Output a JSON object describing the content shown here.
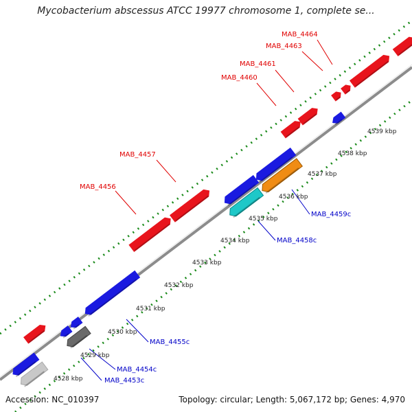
{
  "title": "Mycobacterium abscessus ATCC 19977 chromosome 1, complete se...",
  "footer": {
    "accession": "Accession: NC_010397",
    "summary": "Topology: circular; Length: 5,067,172 bp; Genes: 4,970"
  },
  "colors": {
    "forward": "#e8141c",
    "reverse": "#1a1ae0",
    "label_forward": "#e00000",
    "label_reverse": "#0000c8",
    "axis": "#8c8c8c",
    "ticks": "#1a8a1a",
    "cyan": "#1ec8c8",
    "orange": "#f08c14",
    "dark_gray": "#6a6a6a",
    "light_gray": "#c8c8c8"
  },
  "ruler": {
    "unit": "kbp",
    "ticks": [
      "4528 kbp",
      "4529 kbp",
      "4530 kbp",
      "4531 kbp",
      "4532 kbp",
      "4533 kbp",
      "4534 kbp",
      "4535 kbp",
      "4536 kbp",
      "4537 kbp",
      "4538 kbp",
      "4539 kbp"
    ]
  },
  "forward_labels": [
    "MAB_4456",
    "MAB_4457",
    "MAB_4460",
    "MAB_4461",
    "MAB_4463",
    "MAB_4464"
  ],
  "reverse_labels": [
    "MAB_4453c",
    "MAB_4454c",
    "MAB_4455c",
    "MAB_4458c",
    "MAB_4459c"
  ]
}
